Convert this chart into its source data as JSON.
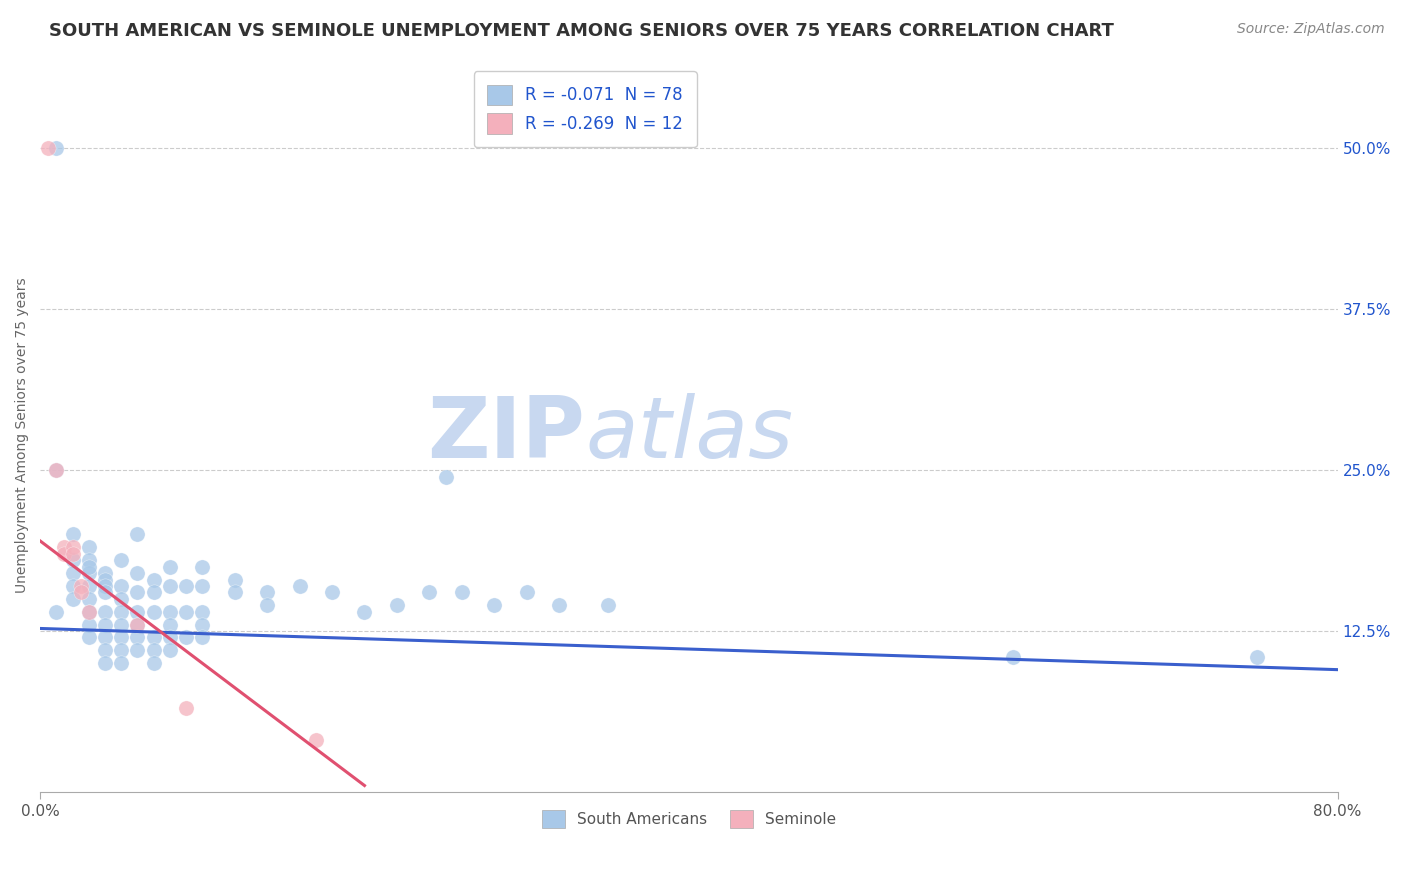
{
  "title": "SOUTH AMERICAN VS SEMINOLE UNEMPLOYMENT AMONG SENIORS OVER 75 YEARS CORRELATION CHART",
  "source": "Source: ZipAtlas.com",
  "ylabel_label": "Unemployment Among Seniors over 75 years",
  "legend_entries": [
    {
      "label": "R = -0.071  N = 78",
      "color": "#aec6e8"
    },
    {
      "label": "R = -0.269  N = 12",
      "color": "#f4b8c1"
    }
  ],
  "legend_r_color": "#2155cd",
  "blue_scatter_color": "#a8c8e8",
  "pink_scatter_color": "#f4b0bc",
  "blue_line_color": "#3a5fcd",
  "pink_line_color": "#e05070",
  "watermark_zip": "ZIP",
  "watermark_atlas": "atlas",
  "watermark_color": "#c8d8f0",
  "south_american_points": [
    [
      0.01,
      0.5
    ],
    [
      0.01,
      0.25
    ],
    [
      0.02,
      0.2
    ],
    [
      0.01,
      0.14
    ],
    [
      0.02,
      0.18
    ],
    [
      0.02,
      0.17
    ],
    [
      0.02,
      0.16
    ],
    [
      0.02,
      0.15
    ],
    [
      0.03,
      0.19
    ],
    [
      0.03,
      0.18
    ],
    [
      0.03,
      0.17
    ],
    [
      0.03,
      0.175
    ],
    [
      0.03,
      0.16
    ],
    [
      0.03,
      0.15
    ],
    [
      0.03,
      0.14
    ],
    [
      0.03,
      0.13
    ],
    [
      0.03,
      0.12
    ],
    [
      0.04,
      0.17
    ],
    [
      0.04,
      0.165
    ],
    [
      0.04,
      0.16
    ],
    [
      0.04,
      0.155
    ],
    [
      0.04,
      0.14
    ],
    [
      0.04,
      0.13
    ],
    [
      0.04,
      0.12
    ],
    [
      0.04,
      0.11
    ],
    [
      0.04,
      0.1
    ],
    [
      0.05,
      0.18
    ],
    [
      0.05,
      0.16
    ],
    [
      0.05,
      0.15
    ],
    [
      0.05,
      0.14
    ],
    [
      0.05,
      0.13
    ],
    [
      0.05,
      0.12
    ],
    [
      0.05,
      0.11
    ],
    [
      0.05,
      0.1
    ],
    [
      0.06,
      0.2
    ],
    [
      0.06,
      0.17
    ],
    [
      0.06,
      0.155
    ],
    [
      0.06,
      0.14
    ],
    [
      0.06,
      0.13
    ],
    [
      0.06,
      0.12
    ],
    [
      0.06,
      0.11
    ],
    [
      0.07,
      0.165
    ],
    [
      0.07,
      0.155
    ],
    [
      0.07,
      0.14
    ],
    [
      0.07,
      0.12
    ],
    [
      0.07,
      0.11
    ],
    [
      0.07,
      0.1
    ],
    [
      0.08,
      0.175
    ],
    [
      0.08,
      0.16
    ],
    [
      0.08,
      0.14
    ],
    [
      0.08,
      0.13
    ],
    [
      0.08,
      0.12
    ],
    [
      0.08,
      0.11
    ],
    [
      0.09,
      0.16
    ],
    [
      0.09,
      0.14
    ],
    [
      0.09,
      0.12
    ],
    [
      0.1,
      0.175
    ],
    [
      0.1,
      0.16
    ],
    [
      0.1,
      0.14
    ],
    [
      0.1,
      0.13
    ],
    [
      0.1,
      0.12
    ],
    [
      0.12,
      0.165
    ],
    [
      0.12,
      0.155
    ],
    [
      0.14,
      0.155
    ],
    [
      0.14,
      0.145
    ],
    [
      0.16,
      0.16
    ],
    [
      0.18,
      0.155
    ],
    [
      0.2,
      0.14
    ],
    [
      0.22,
      0.145
    ],
    [
      0.24,
      0.155
    ],
    [
      0.25,
      0.245
    ],
    [
      0.26,
      0.155
    ],
    [
      0.28,
      0.145
    ],
    [
      0.3,
      0.155
    ],
    [
      0.32,
      0.145
    ],
    [
      0.35,
      0.145
    ],
    [
      0.6,
      0.105
    ],
    [
      0.75,
      0.105
    ]
  ],
  "seminole_points": [
    [
      0.005,
      0.5
    ],
    [
      0.01,
      0.25
    ],
    [
      0.015,
      0.19
    ],
    [
      0.015,
      0.185
    ],
    [
      0.02,
      0.19
    ],
    [
      0.02,
      0.185
    ],
    [
      0.025,
      0.16
    ],
    [
      0.025,
      0.155
    ],
    [
      0.03,
      0.14
    ],
    [
      0.06,
      0.13
    ],
    [
      0.09,
      0.065
    ],
    [
      0.17,
      0.04
    ]
  ],
  "blue_line_x": [
    0.0,
    0.8
  ],
  "blue_line_y": [
    0.127,
    0.095
  ],
  "pink_line_x": [
    0.0,
    0.2
  ],
  "pink_line_y": [
    0.195,
    0.005
  ],
  "xlim": [
    0.0,
    0.8
  ],
  "ylim": [
    0.0,
    0.555
  ],
  "yticks": [
    0.125,
    0.25,
    0.375,
    0.5
  ],
  "ytick_labels": [
    "12.5%",
    "25.0%",
    "37.5%",
    "50.0%"
  ],
  "grid_color": "#cccccc",
  "background_color": "#ffffff",
  "title_fontsize": 13,
  "axis_label_fontsize": 10,
  "tick_fontsize": 11,
  "source_fontsize": 10,
  "scatter_size": 120
}
